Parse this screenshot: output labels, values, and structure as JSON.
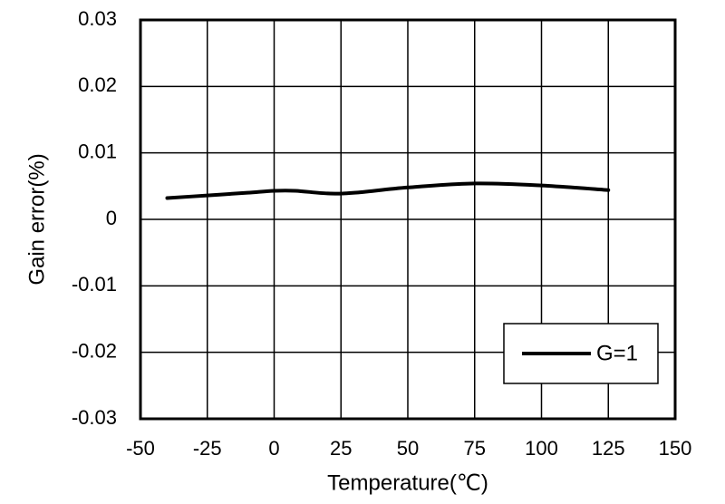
{
  "chart_data": {
    "type": "line",
    "xlabel": "Temperature(℃)",
    "ylabel": "Gain error(%)",
    "xlim": [
      -50,
      150
    ],
    "ylim": [
      -0.03,
      0.03
    ],
    "xticks": [
      -50,
      -25,
      0,
      25,
      50,
      75,
      100,
      125,
      150
    ],
    "xtick_labels": [
      "-50",
      "-25",
      "0",
      "25",
      "50",
      "75",
      "100",
      "125",
      "150"
    ],
    "yticks": [
      0.03,
      0.02,
      0.01,
      0,
      -0.01,
      -0.02,
      -0.03
    ],
    "ytick_labels": [
      "0.03",
      "0.02",
      "0.01",
      "0",
      "-0.01",
      "-0.02",
      "-0.03"
    ],
    "grid": true,
    "legend_position": "bottom-right",
    "series": [
      {
        "name": "G=1",
        "color": "#000000",
        "x": [
          -40,
          -25,
          -10,
          0,
          8,
          20,
          30,
          50,
          75,
          100,
          125
        ],
        "y": [
          0.0032,
          0.0036,
          0.004,
          0.0043,
          0.0043,
          0.0039,
          0.004,
          0.0048,
          0.0054,
          0.0051,
          0.0044
        ]
      }
    ]
  }
}
